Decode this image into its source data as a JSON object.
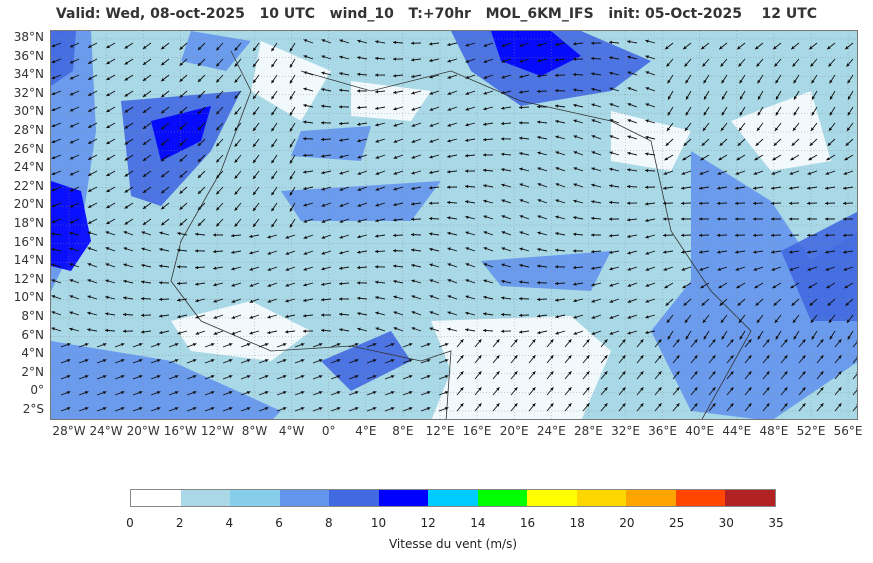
{
  "title": "Valid: Wed, 08-oct-2025   10 UTC   wind_10   T:+70hr   MOL_6KM_IFS   init: 05-Oct-2025    12 UTC",
  "lat_labels": [
    "38°N",
    "36°N",
    "34°N",
    "32°N",
    "30°N",
    "28°N",
    "26°N",
    "24°N",
    "22°N",
    "20°N",
    "18°N",
    "16°N",
    "14°N",
    "12°N",
    "10°N",
    "8°N",
    "6°N",
    "4°N",
    "2°N",
    "0°",
    "2°S"
  ],
  "lon_labels": [
    "28°W",
    "24°W",
    "20°W",
    "16°W",
    "12°W",
    "8°W",
    "4°W",
    "0°",
    "4°E",
    "8°E",
    "12°E",
    "16°E",
    "20°E",
    "24°E",
    "28°E",
    "32°E",
    "36°E",
    "40°E",
    "44°E",
    "48°E",
    "52°E",
    "56°E"
  ],
  "colorbar": {
    "label": "Vitesse du vent (m/s)",
    "ticks": [
      "0",
      "2",
      "4",
      "6",
      "8",
      "10",
      "12",
      "14",
      "16",
      "18",
      "20",
      "25",
      "30",
      "35"
    ],
    "colors": [
      "#ffffff",
      "#aad8e6",
      "#87ceeb",
      "#6495ed",
      "#4169e1",
      "#0000ff",
      "#00ccff",
      "#00ff00",
      "#ffff00",
      "#ffd700",
      "#ffa500",
      "#ff4500",
      "#b22222"
    ]
  }
}
